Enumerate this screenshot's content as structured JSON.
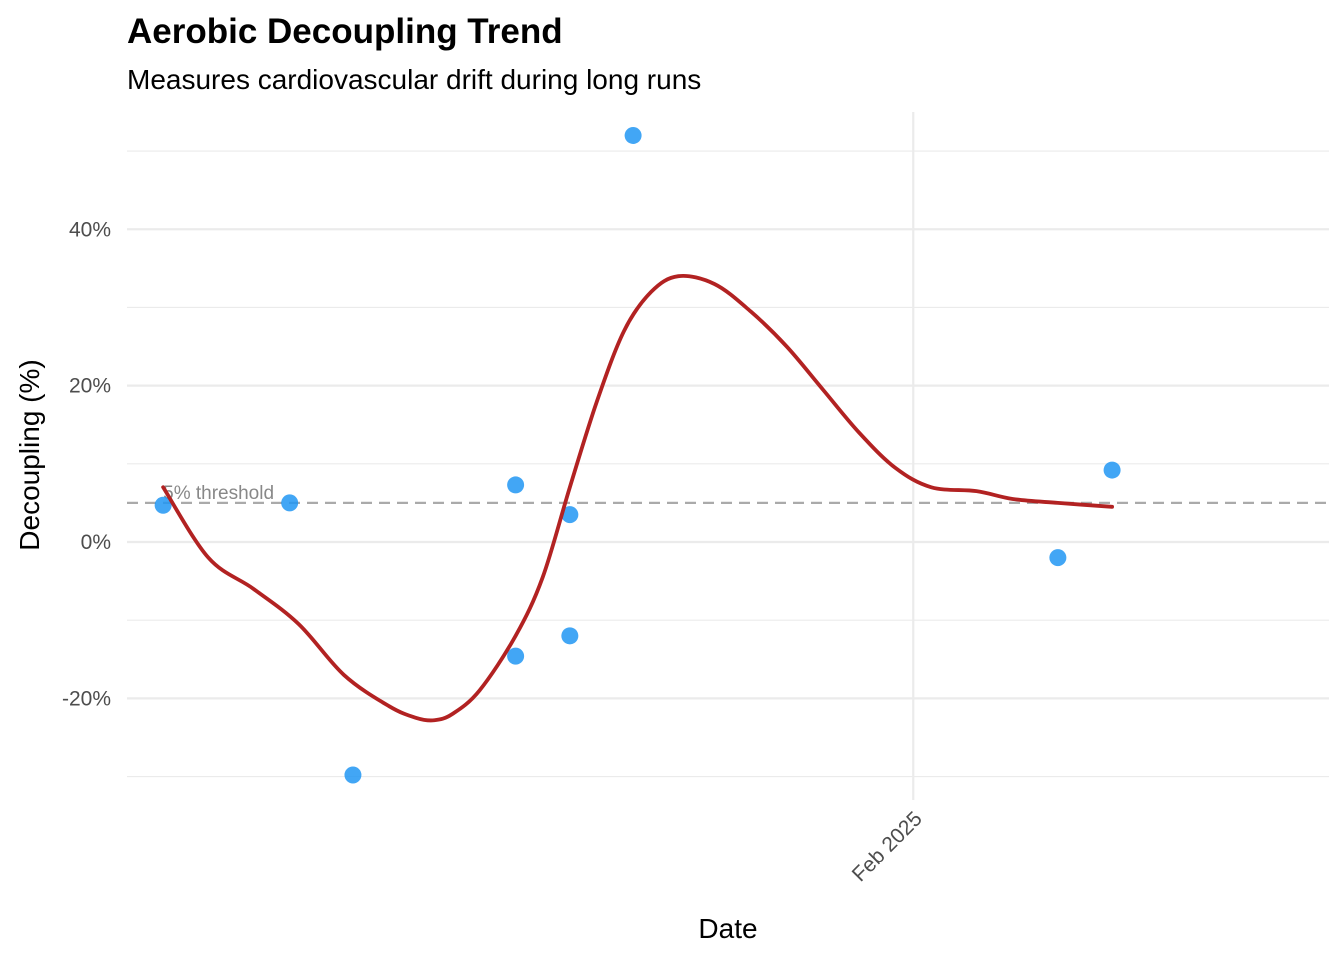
{
  "chart_data": {
    "type": "scatter",
    "title": "Aerobic Decoupling Trend",
    "subtitle": "Measures cardiovascular drift during long runs",
    "xlabel": "Date",
    "ylabel": "Decoupling (%)",
    "ylim": [
      -33,
      55
    ],
    "xlim": [
      "2024-11-06",
      "2025-03-19"
    ],
    "y_ticks": [
      -20,
      0,
      20,
      40
    ],
    "y_tick_labels": [
      "-20%",
      "0%",
      "20%",
      "40%"
    ],
    "x_ticks": [
      "2025-02-01"
    ],
    "x_tick_labels": [
      "Feb 2025"
    ],
    "grid": true,
    "point_color": "#2196F3",
    "trend_color": "#B22222",
    "threshold_color": "#AAAAAA",
    "points": {
      "x": [
        "2024-11-10",
        "2024-11-24",
        "2024-12-01",
        "2024-12-19",
        "2024-12-19",
        "2024-12-25",
        "2024-12-25",
        "2025-01-01",
        "2025-02-17",
        "2025-02-23"
      ],
      "y": [
        4.7,
        5.0,
        -29.8,
        7.3,
        -14.6,
        3.5,
        -12.0,
        52.0,
        -2.0,
        9.2
      ]
    },
    "trend": {
      "x": [
        "2024-11-10",
        "2024-11-15",
        "2024-11-20",
        "2024-11-25",
        "2024-11-30",
        "2024-12-05",
        "2024-12-08",
        "2024-12-10",
        "2024-12-12",
        "2024-12-15",
        "2024-12-19",
        "2024-12-22",
        "2024-12-25",
        "2024-12-28",
        "2024-12-31",
        "2025-01-03",
        "2025-01-06",
        "2025-01-10",
        "2025-01-14",
        "2025-01-18",
        "2025-01-22",
        "2025-01-26",
        "2025-01-30",
        "2025-02-03",
        "2025-02-08",
        "2025-02-12",
        "2025-02-17",
        "2025-02-23"
      ],
      "y": [
        7.0,
        -2.0,
        -6.0,
        -10.5,
        -17.0,
        -21.0,
        -22.5,
        -22.8,
        -22.0,
        -19.0,
        -12.0,
        -4.5,
        7.0,
        18.0,
        27.0,
        32.0,
        34.0,
        33.0,
        29.5,
        25.0,
        19.5,
        14.0,
        9.5,
        7.0,
        6.5,
        5.5,
        5.0,
        4.5
      ]
    },
    "threshold": {
      "y": 5,
      "label": "5% threshold",
      "style": "dashed"
    }
  }
}
